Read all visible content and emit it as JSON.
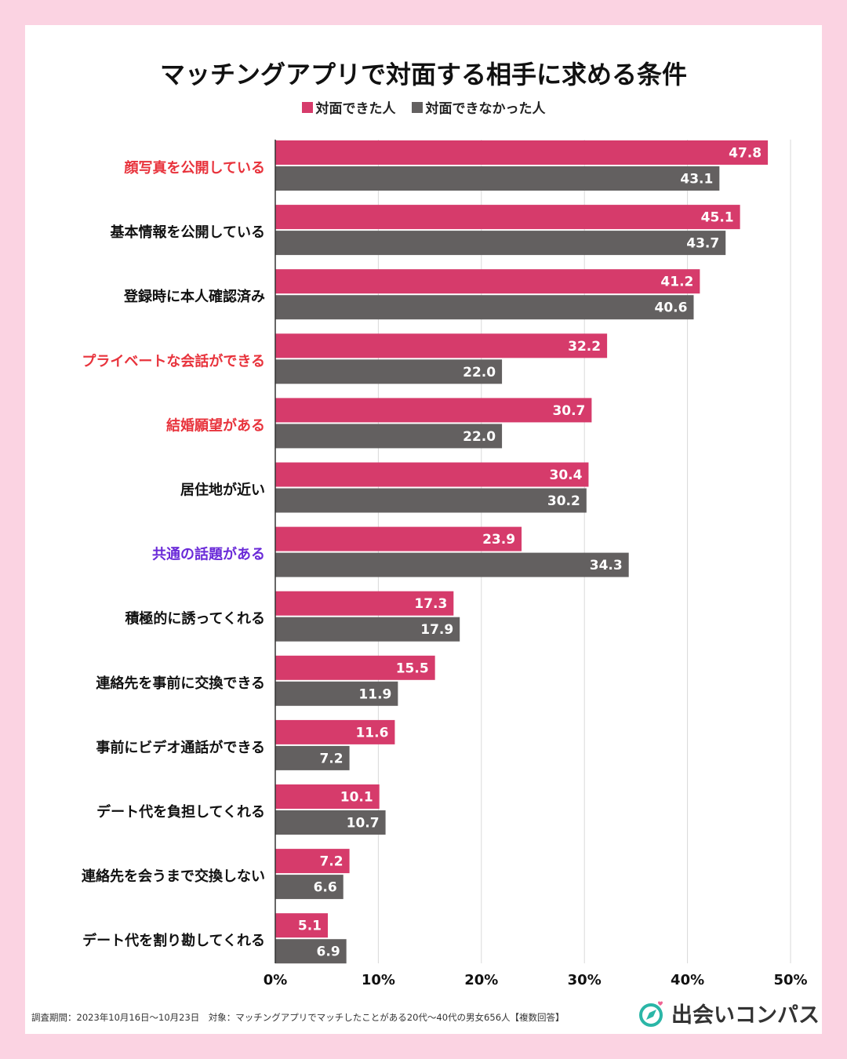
{
  "title": "マッチングアプリで対面する相手に求める条件",
  "legend": [
    {
      "label": "対面できた人",
      "color": "#d63b6b"
    },
    {
      "label": "対面できなかった人",
      "color": "#636060"
    }
  ],
  "footnote": "調査期間：2023年10月16日〜10月23日　対象：マッチングアプリでマッチしたことがある20代〜40代の男女656人【複数回答】",
  "logo": {
    "text": "出会いコンパス",
    "icon": "compass-heart-icon",
    "icon_color": "#2bb6a7",
    "heart_color": "#f06292"
  },
  "chart_data": {
    "type": "bar",
    "orientation": "horizontal",
    "title": "マッチングアプリで対面する相手に求める条件",
    "categories": [
      "顔写真を公開している",
      "基本情報を公開している",
      "登録時に本人確認済み",
      "プライベートな会話ができる",
      "結婚願望がある",
      "居住地が近い",
      "共通の話題がある",
      "積極的に誘ってくれる",
      "連絡先を事前に交換できる",
      "事前にビデオ通話ができる",
      "デート代を負担してくれる",
      "連絡先を会うまで交換しない",
      "デート代を割り勘してくれる"
    ],
    "category_colors": [
      "#e8333c",
      "#111111",
      "#111111",
      "#e8333c",
      "#e8333c",
      "#111111",
      "#6a2ad8",
      "#111111",
      "#111111",
      "#111111",
      "#111111",
      "#111111",
      "#111111"
    ],
    "series": [
      {
        "name": "対面できた人",
        "color": "#d63b6b",
        "values": [
          47.8,
          45.1,
          41.2,
          32.2,
          30.7,
          30.4,
          23.9,
          17.3,
          15.5,
          11.6,
          10.1,
          7.2,
          5.1
        ],
        "labels": [
          "47.8",
          "45.1",
          "41.2",
          "32.2",
          "30.7",
          "30.4",
          "23.9",
          "17.3",
          "15.5",
          "11.6",
          "10.1",
          "7.2",
          "5.1"
        ]
      },
      {
        "name": "対面できなかった人",
        "color": "#636060",
        "values": [
          43.1,
          43.7,
          40.6,
          22.0,
          22.0,
          30.2,
          34.3,
          17.9,
          11.9,
          7.2,
          10.7,
          6.6,
          6.9
        ],
        "labels": [
          "43.1",
          "43.7",
          "40.6",
          "22.0",
          "22.0",
          "30.2",
          "34.3",
          "17.9",
          "11.9",
          "7.2",
          "10.7",
          "6.6",
          "6.9"
        ]
      }
    ],
    "xlim": [
      0,
      50
    ],
    "xticks": [
      0,
      10,
      20,
      30,
      40,
      50
    ],
    "xtick_labels": [
      "0%",
      "10%",
      "20%",
      "30%",
      "40%",
      "50%"
    ],
    "unit": "%",
    "grid": true,
    "legend_position": "top-center"
  }
}
